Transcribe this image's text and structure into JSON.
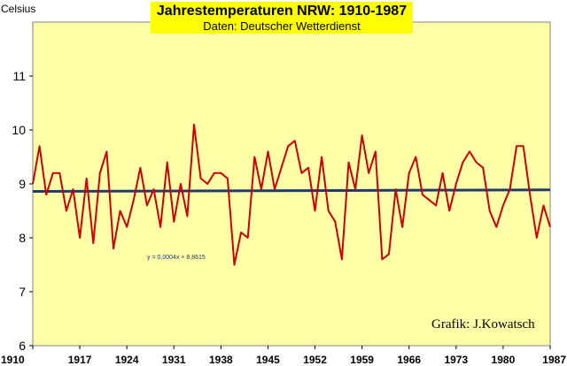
{
  "chart_data": {
    "type": "line",
    "title": "Jahrestemperaturen  NRW: 1910-1987",
    "subtitle": "Daten: Deutscher Wetterdienst",
    "ylabel": "Celsius",
    "xlabel": "",
    "ylim": [
      6,
      12
    ],
    "xlim": [
      1910,
      1987
    ],
    "yticks": [
      6,
      7,
      8,
      9,
      10,
      11
    ],
    "xticks": [
      1910,
      1917,
      1924,
      1931,
      1938,
      1945,
      1952,
      1959,
      1966,
      1973,
      1980,
      1987
    ],
    "grid": false,
    "x": [
      1910,
      1911,
      1912,
      1913,
      1914,
      1915,
      1916,
      1917,
      1918,
      1919,
      1920,
      1921,
      1922,
      1923,
      1924,
      1925,
      1926,
      1927,
      1928,
      1929,
      1930,
      1931,
      1932,
      1933,
      1934,
      1935,
      1936,
      1937,
      1938,
      1939,
      1940,
      1941,
      1942,
      1943,
      1944,
      1945,
      1946,
      1947,
      1948,
      1949,
      1950,
      1951,
      1952,
      1953,
      1954,
      1955,
      1956,
      1957,
      1958,
      1959,
      1960,
      1961,
      1962,
      1963,
      1964,
      1965,
      1966,
      1967,
      1968,
      1969,
      1970,
      1971,
      1972,
      1973,
      1974,
      1975,
      1976,
      1977,
      1978,
      1979,
      1980,
      1981,
      1982,
      1983,
      1984,
      1985,
      1986,
      1987
    ],
    "series": [
      {
        "values": [
          9.0,
          9.7,
          8.8,
          9.2,
          9.2,
          8.5,
          8.9,
          8.0,
          9.1,
          7.9,
          9.2,
          9.6,
          7.8,
          8.5,
          8.2,
          8.7,
          9.3,
          8.6,
          8.9,
          8.2,
          9.4,
          8.3,
          9.0,
          8.4,
          10.1,
          9.1,
          9.0,
          9.2,
          9.2,
          9.1,
          7.5,
          8.1,
          8.0,
          9.5,
          8.9,
          9.6,
          8.9,
          9.3,
          9.7,
          9.8,
          9.2,
          9.3,
          8.5,
          9.5,
          8.5,
          8.3,
          7.6,
          9.4,
          8.9,
          9.9,
          9.2,
          9.6,
          7.6,
          7.7,
          8.9,
          8.2,
          9.2,
          9.5,
          8.8,
          8.7,
          8.6,
          9.2,
          8.5,
          9.0,
          9.4,
          9.6,
          9.4,
          9.3,
          8.5,
          8.2,
          8.6,
          8.9,
          9.7,
          9.7,
          8.8,
          8.0,
          8.6,
          8.2
        ],
        "color": "#cc0000"
      },
      {
        "type": "trend",
        "equation": "y = 0,0004x + 8,8615",
        "start": 8.86,
        "end": 8.89,
        "color": "#1f3a6e"
      }
    ],
    "credit": "Grafik:  J.Kowatsch"
  },
  "colors": {
    "plot_background": "#ffffa8",
    "title_background": "#ffff00"
  }
}
